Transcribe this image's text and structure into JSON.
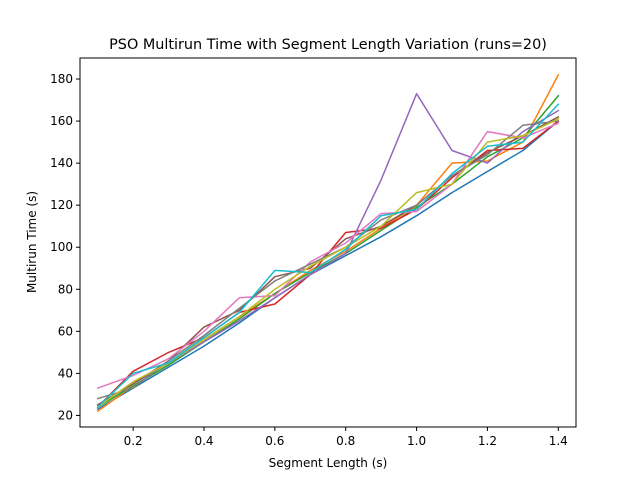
{
  "chart_data": {
    "type": "line",
    "title": "PSO Multirun Time with Segment Length Variation (runs=20)",
    "xlabel": "Segment Length (s)",
    "ylabel": "Multirun Time (s)",
    "xlim": [
      0.05,
      1.45
    ],
    "ylim": [
      14.5,
      190
    ],
    "x_ticks": [
      0.2,
      0.4,
      0.6,
      0.8,
      1.0,
      1.2,
      1.4
    ],
    "x_tick_labels": [
      "0.2",
      "0.4",
      "0.6",
      "0.8",
      "1.0",
      "1.2",
      "1.4"
    ],
    "y_ticks": [
      20,
      40,
      60,
      80,
      100,
      120,
      140,
      160,
      180
    ],
    "y_tick_labels": [
      "20",
      "40",
      "60",
      "80",
      "100",
      "120",
      "140",
      "160",
      "180"
    ],
    "grid": false,
    "legend": "none",
    "x": [
      0.1,
      0.2,
      0.3,
      0.4,
      0.5,
      0.6,
      0.7,
      0.8,
      0.9,
      1.0,
      1.1,
      1.2,
      1.3,
      1.4
    ],
    "series": [
      {
        "color": "#1f77b4",
        "values": [
          23,
          33,
          43,
          53,
          64,
          76,
          87,
          96,
          105,
          115,
          126,
          136,
          146,
          160
        ]
      },
      {
        "color": "#ff7f0e",
        "values": [
          22,
          34,
          44,
          56,
          67,
          78,
          89,
          98,
          109,
          120,
          140,
          141,
          150,
          182
        ]
      },
      {
        "color": "#2ca02c",
        "values": [
          24,
          34,
          44,
          55,
          66,
          78,
          88,
          97,
          108,
          119,
          130,
          143,
          152,
          172
        ]
      },
      {
        "color": "#d62728",
        "values": [
          24,
          41,
          50,
          57,
          69,
          73,
          87,
          107,
          109,
          118,
          133,
          146,
          147,
          160
        ]
      },
      {
        "color": "#9467bd",
        "values": [
          25,
          35,
          45,
          55,
          65,
          76,
          87,
          97,
          132,
          173,
          146,
          140,
          155,
          165
        ]
      },
      {
        "color": "#8c564b",
        "values": [
          25,
          35,
          46,
          62,
          70,
          86,
          90,
          104,
          110,
          120,
          134,
          145,
          153,
          162
        ]
      },
      {
        "color": "#e377c2",
        "values": [
          33,
          39,
          47,
          60,
          76,
          77,
          93,
          102,
          116,
          117,
          130,
          155,
          152,
          159
        ]
      },
      {
        "color": "#7f7f7f",
        "values": [
          28,
          33,
          46,
          58,
          71,
          84,
          92,
          100,
          113,
          120,
          134,
          144,
          158,
          160
        ]
      },
      {
        "color": "#bcbd22",
        "values": [
          24,
          36,
          45,
          56,
          67,
          80,
          91,
          100,
          110,
          126,
          130,
          150,
          153,
          161
        ]
      },
      {
        "color": "#17becf",
        "values": [
          24,
          40,
          45,
          57,
          69,
          89,
          88,
          99,
          115,
          118,
          135,
          148,
          150,
          168
        ]
      }
    ]
  }
}
